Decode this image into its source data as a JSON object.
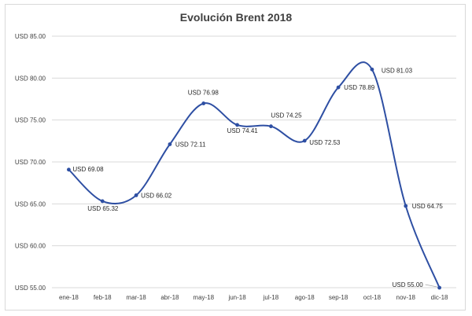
{
  "chart_data": {
    "type": "line",
    "title": "Evolución Brent 2018",
    "categories": [
      "ene-18",
      "feb-18",
      "mar-18",
      "abr-18",
      "may-18",
      "jun-18",
      "jul-18",
      "ago-18",
      "sep-18",
      "oct-18",
      "nov-18",
      "dic-18"
    ],
    "values": [
      69.08,
      65.32,
      66.02,
      72.11,
      76.98,
      74.41,
      74.25,
      72.53,
      78.89,
      81.03,
      64.75,
      55.0
    ],
    "data_labels": [
      "USD 69.08",
      "USD 65.32",
      "USD 66.02",
      "USD 72.11",
      "USD 76.98",
      "USD 74.41",
      "USD 74.25",
      "USD 72.53",
      "USD 78.89",
      "USD 81.03",
      "USD 64.75",
      "USD 55.00"
    ],
    "y_ticks": [
      55,
      60,
      65,
      70,
      75,
      80,
      85
    ],
    "y_tick_labels": [
      "USD 55.00",
      "USD 60.00",
      "USD 65.00",
      "USD 70.00",
      "USD 75.00",
      "USD 80.00",
      "USD 85.00"
    ],
    "ylim": [
      55,
      85
    ],
    "xlabel": "",
    "ylabel": "",
    "grid": true,
    "smoothed": true,
    "line_color": "#2e4fa3",
    "grid_color": "#d9d9d9"
  }
}
